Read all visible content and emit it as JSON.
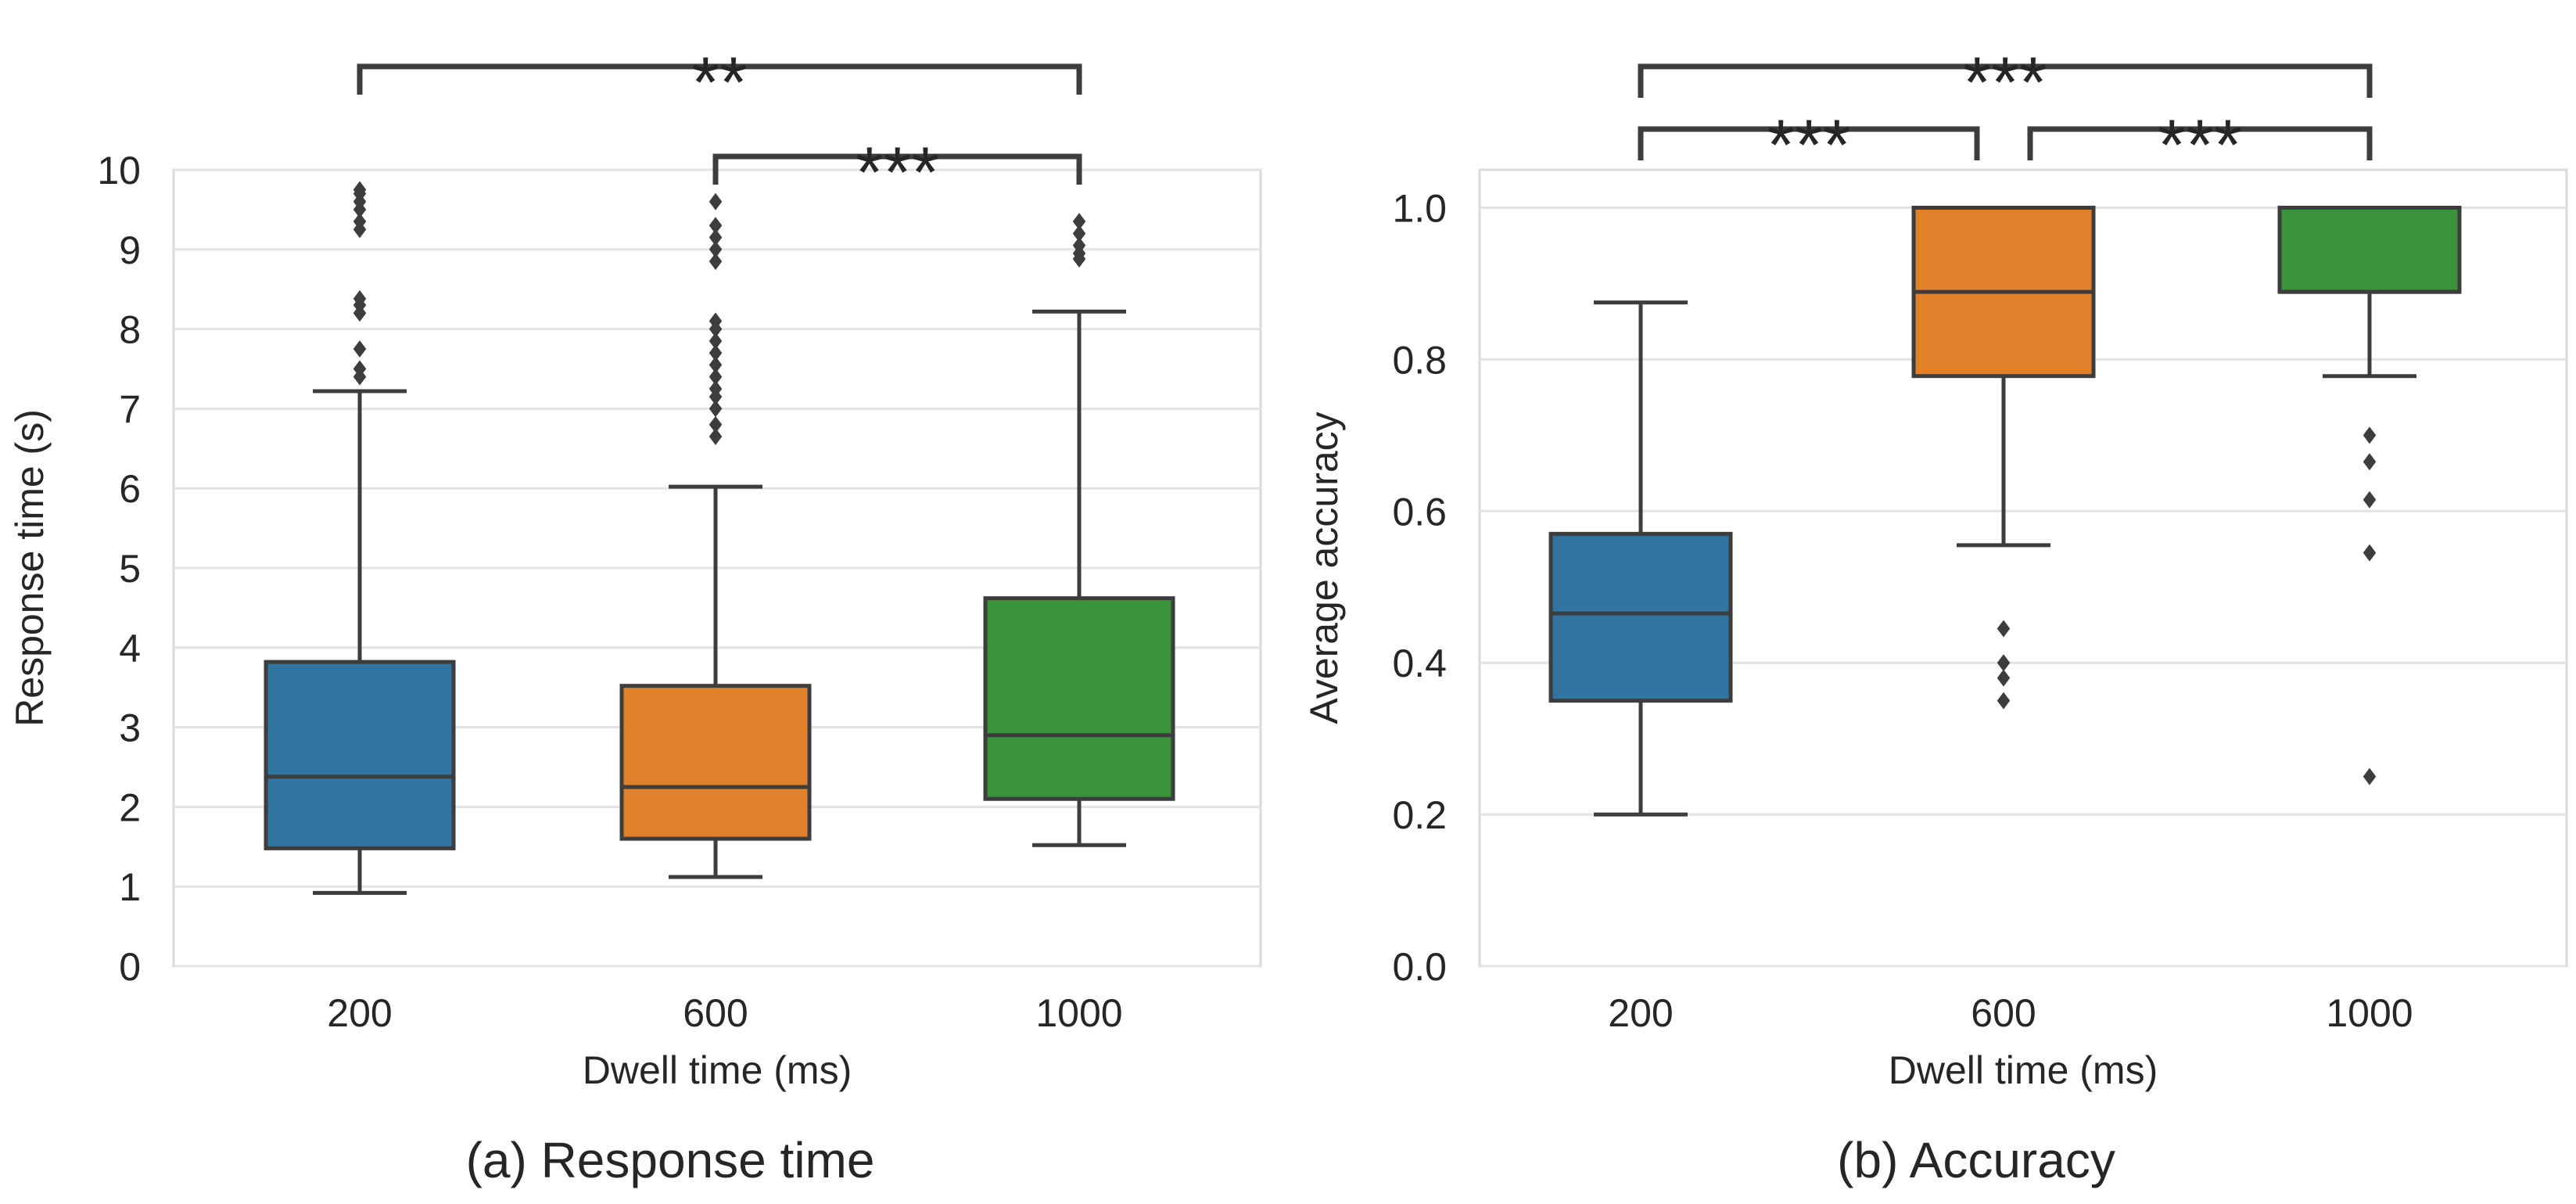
{
  "chart_data": [
    {
      "type": "box",
      "caption": "(a) Response time",
      "title": "",
      "xlabel": "Dwell time (ms)",
      "ylabel": "Response time (s)",
      "ylim": [
        0,
        10
      ],
      "yticks": [
        0,
        1,
        2,
        3,
        4,
        5,
        6,
        7,
        8,
        9,
        10
      ],
      "ytick_labels": [
        "0",
        "1",
        "2",
        "3",
        "4",
        "5",
        "6",
        "7",
        "8",
        "9",
        "10"
      ],
      "grid": true,
      "categories": [
        "200",
        "600",
        "1000"
      ],
      "colors": [
        "#3274a1",
        "#e1812c",
        "#3a923a"
      ],
      "boxes": [
        {
          "category": "200",
          "whisker_low": 0.92,
          "q1": 1.48,
          "median": 2.38,
          "q3": 3.82,
          "whisker_high": 7.22,
          "outliers": [
            7.4,
            7.5,
            7.75,
            8.2,
            8.3,
            8.38,
            9.25,
            9.35,
            9.5,
            9.6,
            9.7,
            9.75
          ]
        },
        {
          "category": "600",
          "whisker_low": 1.12,
          "q1": 1.6,
          "median": 2.25,
          "q3": 3.52,
          "whisker_high": 6.02,
          "outliers": [
            6.65,
            6.8,
            7.0,
            7.15,
            7.25,
            7.4,
            7.55,
            7.7,
            7.85,
            8.0,
            8.1,
            8.85,
            9.0,
            9.15,
            9.3,
            9.6
          ]
        },
        {
          "category": "1000",
          "whisker_low": 1.52,
          "q1": 2.1,
          "median": 2.9,
          "q3": 4.62,
          "whisker_high": 8.22,
          "outliers": [
            8.88,
            8.95,
            9.05,
            9.2,
            9.35
          ]
        }
      ],
      "significance": [
        {
          "from": "200",
          "to": "1000",
          "label": "**",
          "level": 2
        },
        {
          "from": "600",
          "to": "1000",
          "label": "***",
          "level": 1
        }
      ]
    },
    {
      "type": "box",
      "caption": "(b) Accuracy",
      "title": "",
      "xlabel": "Dwell time (ms)",
      "ylabel": "Average accuracy",
      "ylim": [
        0,
        1.05
      ],
      "yticks": [
        0.0,
        0.2,
        0.4,
        0.6,
        0.8,
        1.0
      ],
      "ytick_labels": [
        "0.0",
        "0.2",
        "0.4",
        "0.6",
        "0.8",
        "1.0"
      ],
      "grid": true,
      "categories": [
        "200",
        "600",
        "1000"
      ],
      "colors": [
        "#3274a1",
        "#e1812c",
        "#3a923a"
      ],
      "boxes": [
        {
          "category": "200",
          "whisker_low": 0.2,
          "q1": 0.35,
          "median": 0.465,
          "q3": 0.57,
          "whisker_high": 0.875,
          "outliers": []
        },
        {
          "category": "600",
          "whisker_low": 0.555,
          "q1": 0.778,
          "median": 0.889,
          "q3": 1.0,
          "whisker_high": 1.0,
          "outliers": [
            0.35,
            0.38,
            0.4,
            0.445
          ]
        },
        {
          "category": "1000",
          "whisker_low": 0.778,
          "q1": 0.889,
          "median": 0.889,
          "q3": 1.0,
          "whisker_high": 1.0,
          "outliers": [
            0.25,
            0.545,
            0.615,
            0.665,
            0.7
          ]
        }
      ],
      "significance": [
        {
          "from": "200",
          "to": "600",
          "label": "***",
          "level": 1
        },
        {
          "from": "600",
          "to": "1000",
          "label": "***",
          "level": 1
        },
        {
          "from": "200",
          "to": "1000",
          "label": "***",
          "level": 2
        }
      ]
    }
  ]
}
